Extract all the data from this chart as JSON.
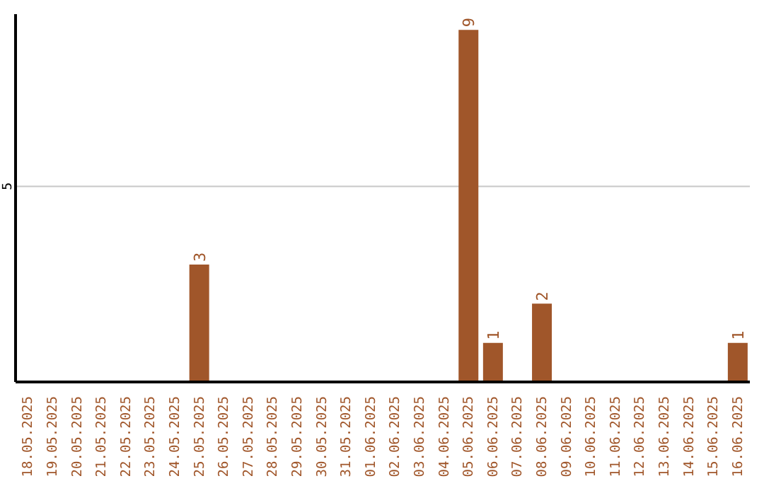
{
  "chart_data": {
    "type": "bar",
    "categories": [
      "18.05.2025",
      "19.05.2025",
      "20.05.2025",
      "21.05.2025",
      "22.05.2025",
      "23.05.2025",
      "24.05.2025",
      "25.05.2025",
      "26.05.2025",
      "27.05.2025",
      "28.05.2025",
      "29.05.2025",
      "30.05.2025",
      "31.05.2025",
      "01.06.2025",
      "02.06.2025",
      "03.06.2025",
      "04.06.2025",
      "05.06.2025",
      "06.06.2025",
      "07.06.2025",
      "08.06.2025",
      "09.06.2025",
      "10.06.2025",
      "11.06.2025",
      "12.06.2025",
      "13.06.2025",
      "14.06.2025",
      "15.06.2025",
      "16.06.2025"
    ],
    "values": [
      0,
      0,
      0,
      0,
      0,
      0,
      0,
      3,
      0,
      0,
      0,
      0,
      0,
      0,
      0,
      0,
      0,
      0,
      9,
      1,
      0,
      2,
      0,
      0,
      0,
      0,
      0,
      0,
      0,
      1
    ],
    "value_labels": [
      null,
      null,
      null,
      null,
      null,
      null,
      null,
      "3",
      null,
      null,
      null,
      null,
      null,
      null,
      null,
      null,
      null,
      null,
      "9",
      "1",
      null,
      "2",
      null,
      null,
      null,
      null,
      null,
      null,
      null,
      "1"
    ],
    "color": "#a0562a",
    "ylim": [
      0,
      9.4
    ],
    "yticks": [
      5
    ],
    "grid": "y"
  }
}
